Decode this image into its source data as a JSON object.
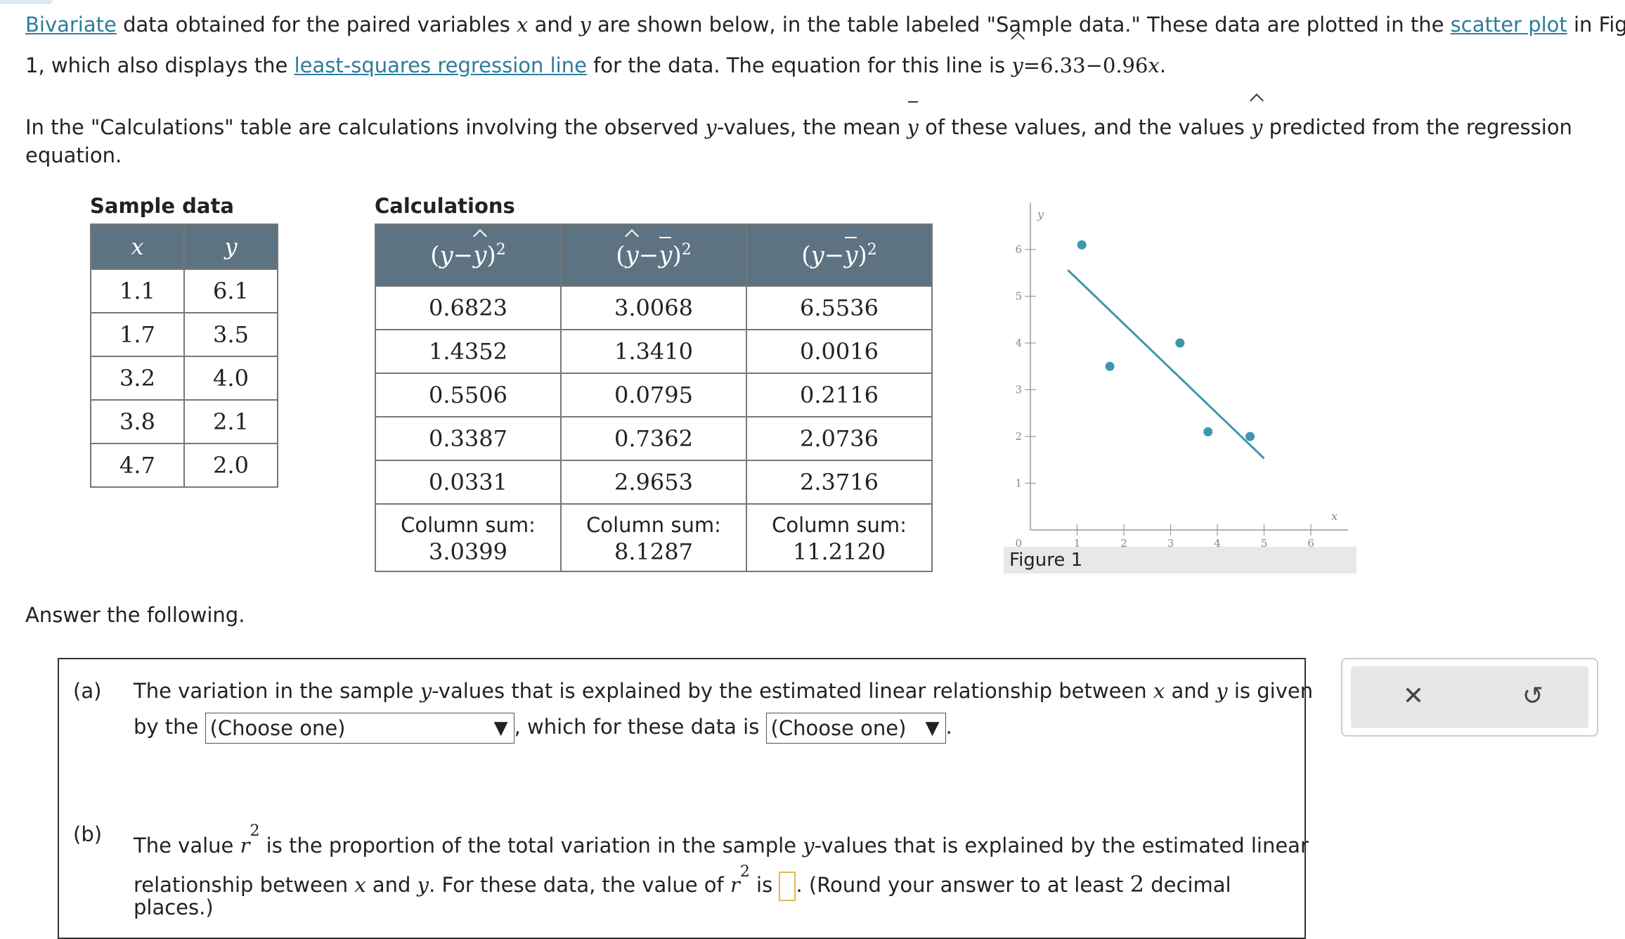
{
  "intro": {
    "link_bivariate": "Bivariate",
    "t1": " data obtained for the paired variables ",
    "x": "x",
    "t2": " and ",
    "y": "y",
    "t3": " are shown below, in the table labeled \"Sample data.\" These data are plotted in the ",
    "link_scatter": "scatter plot",
    "t4": " in Figure",
    "t5": "1, which also displays the ",
    "link_lsrl": "least-squares regression line",
    "t6": " for the data. The equation for this line is ",
    "eq": "=6.33−0.96",
    "t7": "."
  },
  "calc_intro": {
    "t1": "In the \"Calculations\" table are calculations involving the observed ",
    "t2": "-values, the mean ",
    "t3": " of these values, and the values ",
    "t4": " predicted from the regression",
    "t5": "equation."
  },
  "sample": {
    "caption": "Sample data",
    "headers": [
      "x",
      "y"
    ],
    "rows": [
      [
        "1.1",
        "6.1"
      ],
      [
        "1.7",
        "3.5"
      ],
      [
        "3.2",
        "4.0"
      ],
      [
        "3.8",
        "2.1"
      ],
      [
        "4.7",
        "2.0"
      ]
    ]
  },
  "calculations": {
    "caption": "Calculations",
    "rows": [
      [
        "0.6823",
        "3.0068",
        "6.5536"
      ],
      [
        "1.4352",
        "1.3410",
        "0.0016"
      ],
      [
        "0.5506",
        "0.0795",
        "0.2116"
      ],
      [
        "0.3387",
        "0.7362",
        "2.0736"
      ],
      [
        "0.0331",
        "2.9653",
        "2.3716"
      ]
    ],
    "sum_label": "Column sum:",
    "sums": [
      "3.0399",
      "8.1287",
      "11.2120"
    ]
  },
  "chart_data": {
    "type": "scatter",
    "points": [
      [
        1.1,
        6.1
      ],
      [
        1.7,
        3.5
      ],
      [
        3.2,
        4.0
      ],
      [
        3.8,
        2.1
      ],
      [
        4.7,
        2.0
      ]
    ],
    "line": {
      "intercept": 6.33,
      "slope": -0.96,
      "x_range": [
        0.8,
        5.0
      ]
    },
    "xlabel": "x",
    "ylabel": "y",
    "xticks": [
      1,
      2,
      3,
      4,
      5,
      6
    ],
    "yticks": [
      1,
      2,
      3,
      4,
      5,
      6
    ],
    "origin_label": "0",
    "xlim": [
      0,
      6.8
    ],
    "ylim": [
      0,
      7
    ],
    "point_color": "#3d98ad",
    "line_color": "#3d98ad",
    "caption": "Figure 1"
  },
  "answer_prompt": "Answer the following.",
  "part_a": {
    "letter": "(a)",
    "t1": "The variation in the sample ",
    "t2": "-values that is explained by the estimated linear relationship between ",
    "t3": " and ",
    "t4": " is given",
    "t5": "by the ",
    "select1": "(Choose one)",
    "t6": ", which for these data is ",
    "select2": "(Choose one)",
    "t7": "."
  },
  "part_b": {
    "letter": "(b)",
    "t1": "The value ",
    "r": "r",
    "sup": "2",
    "t2": " is the proportion of the total variation in the sample ",
    "t3": "-values that is explained by the estimated linear",
    "t4": "relationship between ",
    "t5": " and ",
    "t6": ". For these data, the value of ",
    "t7": " is ",
    "t8": ". (Round your answer to at least ",
    "digits": "2",
    "t9": " decimal",
    "t10": "places.)"
  },
  "tools": {
    "close_symbol": "✕",
    "undo_symbol": "↺"
  }
}
